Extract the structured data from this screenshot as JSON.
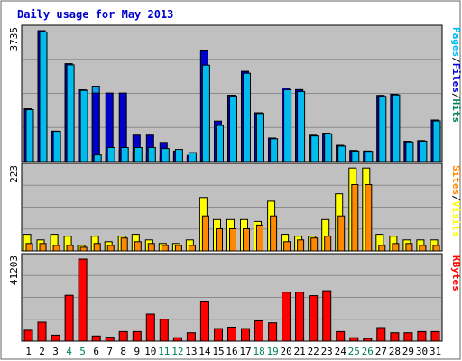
{
  "chart_data": {
    "type": "bar",
    "title": "Daily usage for May 2013",
    "categories": [
      "1",
      "2",
      "3",
      "4",
      "5",
      "6",
      "7",
      "8",
      "9",
      "10",
      "11",
      "12",
      "13",
      "14",
      "15",
      "16",
      "17",
      "18",
      "19",
      "20",
      "21",
      "22",
      "23",
      "24",
      "25",
      "26",
      "27",
      "28",
      "29",
      "30",
      "31"
    ],
    "weekend_days": [
      "4",
      "5",
      "11",
      "12",
      "18",
      "19",
      "25",
      "26"
    ],
    "panels": [
      {
        "id": "hits",
        "ymax_label": "3735",
        "ymax": 3735,
        "series": [
          {
            "name": "Hits",
            "color": "#0e9ff0",
            "values": [
              1505,
              3735,
              865,
              2790,
              2045,
              2150,
              200,
              320,
              280,
              180,
              155,
              120,
              120,
              3135,
              1100,
              1890,
              2570,
              1390,
              670,
              2100,
              2050,
              750,
              810,
              460,
              315,
              300,
              1885,
              1920,
              580,
              595,
              1185
            ]
          },
          {
            "name": "Files",
            "color": "#0000cc",
            "values": [
              1505,
              3735,
              865,
              2790,
              2045,
              1955,
              1955,
              1955,
              755,
              755,
              545,
              300,
              175,
              3180,
              1155,
              1890,
              2570,
              1390,
              670,
              2100,
              2050,
              750,
              810,
              460,
              315,
              300,
              1885,
              1920,
              580,
              595,
              1185
            ]
          },
          {
            "name": "Pages",
            "color": "#00bbee",
            "values": [
              1480,
              3700,
              860,
              2760,
              2030,
              190,
              400,
              400,
              400,
              400,
              370,
              345,
              255,
              2750,
              1030,
              1870,
              2520,
              1370,
              650,
              2050,
              2000,
              730,
              790,
              440,
              300,
              290,
              1860,
              1900,
              560,
              580,
              1160
            ]
          }
        ],
        "legend": [
          "Pages",
          "/",
          "Files",
          "/",
          "Hits"
        ]
      },
      {
        "id": "visits",
        "ymax_label": "223",
        "ymax": 223,
        "series": [
          {
            "name": "Visits",
            "color": "#ffff00",
            "values": [
              45,
              30,
              45,
              40,
              15,
              40,
              25,
              40,
              45,
              30,
              20,
              20,
              30,
              145,
              85,
              85,
              85,
              80,
              135,
              45,
              40,
              40,
              85,
              155,
              225,
              225,
              45,
              40,
              30,
              30,
              30
            ]
          },
          {
            "name": "Sites",
            "color": "#ff8800",
            "values": [
              20,
              20,
              15,
              15,
              10,
              20,
              15,
              35,
              25,
              20,
              15,
              15,
              15,
              95,
              60,
              60,
              60,
              70,
              95,
              25,
              30,
              35,
              40,
              95,
              180,
              180,
              15,
              20,
              20,
              15,
              15
            ]
          }
        ],
        "legend": [
          "Sites",
          "/",
          "Visits"
        ]
      },
      {
        "id": "kbytes",
        "ymax_label": "41203",
        "ymax": 41203,
        "series": [
          {
            "name": "KBytes",
            "color": "#ff0000",
            "values": [
              5500,
              9500,
              3000,
              23000,
              41203,
              2600,
              2000,
              4800,
              4800,
              13600,
              11000,
              1700,
              4200,
              19700,
              6300,
              7000,
              6300,
              10200,
              9200,
              24600,
              24600,
              22800,
              25300,
              4800,
              1700,
              1300,
              6800,
              4200,
              4200,
              4800,
              4800
            ]
          }
        ],
        "legend": [
          "KBytes"
        ]
      }
    ]
  },
  "colors": {
    "title": "#0000cc",
    "plot_bg": "#c0c0c0",
    "frame_bg": "#ffffff",
    "weekday_label": "#000000",
    "weekend_label": "#00805c",
    "gridline": "#8c8c8c",
    "legend_slash": "#000000",
    "legend_hits": "#00805c"
  }
}
